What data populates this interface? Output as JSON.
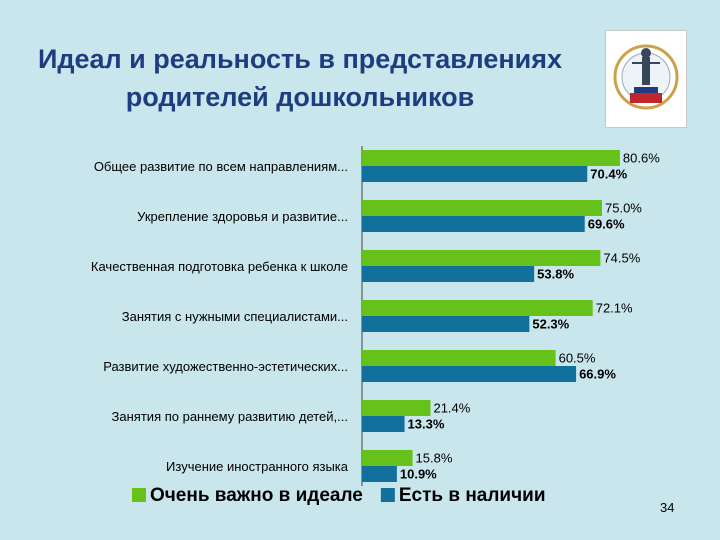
{
  "slide": {
    "title_line1": "Идеал и реальность в представлениях",
    "title_line2": "родителей дошкольников",
    "page_number": "34"
  },
  "colors": {
    "background": "#c9e6ec",
    "title": "#1f3c80",
    "ideal": "#66c21a",
    "actual": "#11719c"
  },
  "chart_data": {
    "type": "bar",
    "orientation": "horizontal",
    "categories": [
      "Общее развитие по всем направлениям...",
      "Укрепление здоровья и развитие...",
      "Качественная подготовка ребенка к школе",
      "Занятия с нужными специалистами...",
      "Развитие художественно-эстетических...",
      "Занятия по раннему развитию детей,...",
      "Изучение иностранного языка"
    ],
    "series": [
      {
        "name": "Очень важно в идеале",
        "values": [
          80.6,
          75.0,
          74.5,
          72.1,
          60.5,
          21.4,
          15.8
        ],
        "labels": [
          "80.6%",
          "75.0%",
          "74.5%",
          "72.1%",
          "60.5%",
          "21.4%",
          "15.8%"
        ]
      },
      {
        "name": "Есть в наличии",
        "values": [
          70.4,
          69.6,
          53.8,
          52.3,
          66.9,
          13.3,
          10.9
        ],
        "labels": [
          "70.4%",
          "69.6%",
          "53.8%",
          "52.3%",
          "66.9%",
          "13.3%",
          "10.9%"
        ]
      }
    ],
    "xlim": [
      0,
      100
    ],
    "grid": false,
    "legend": "bottom"
  }
}
